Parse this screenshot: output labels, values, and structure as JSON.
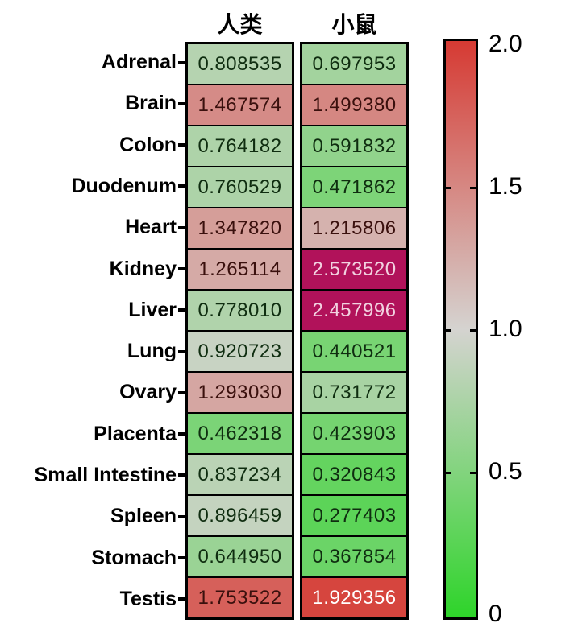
{
  "chart_data": {
    "type": "heatmap",
    "title": "",
    "columns": [
      "人类",
      "小鼠"
    ],
    "rows": [
      "Adrenal",
      "Brain",
      "Colon",
      "Duodenum",
      "Heart",
      "Kidney",
      "Liver",
      "Lung",
      "Ovary",
      "Placenta",
      "Small Intestine",
      "Spleen",
      "Stomach",
      "Testis"
    ],
    "values": [
      [
        "0.808535",
        "0.697953"
      ],
      [
        "1.467574",
        "1.499380"
      ],
      [
        "0.764182",
        "0.591832"
      ],
      [
        "0.760529",
        "0.471862"
      ],
      [
        "1.347820",
        "1.215806"
      ],
      [
        "1.265114",
        "2.573520"
      ],
      [
        "0.778010",
        "2.457996"
      ],
      [
        "0.920723",
        "0.440521"
      ],
      [
        "1.293030",
        "0.731772"
      ],
      [
        "0.462318",
        "0.423903"
      ],
      [
        "0.837234",
        "0.320843"
      ],
      [
        "0.896459",
        "0.277403"
      ],
      [
        "0.644950",
        "0.367854"
      ],
      [
        "1.753522",
        "1.929356"
      ]
    ],
    "colorbar": {
      "min": 0,
      "max": 2,
      "tick_labels": [
        "2.0",
        "1.5",
        "1.0",
        "0.5",
        "0"
      ],
      "tick_values": [
        2.0,
        1.5,
        1.0,
        0.5,
        0
      ],
      "colors": {
        "low": "#2ed42a",
        "mid": "#d5d3d0",
        "high": "#d63a33",
        "over": "#b1125a"
      },
      "text_colors": {
        "dark_green": "#0f2d10",
        "dark_red": "#3a100d",
        "white": "#ffffff",
        "pink_white": "#f2d2e0"
      }
    },
    "legend_position": "right",
    "grid": false
  }
}
